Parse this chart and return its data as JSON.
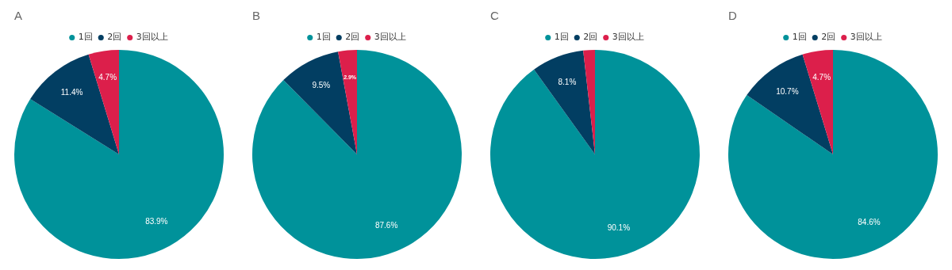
{
  "chart_data": [
    {
      "type": "pie",
      "title": "A",
      "categories": [
        "1回",
        "2回",
        "3回以上"
      ],
      "values": [
        83.9,
        11.4,
        4.7
      ],
      "colors": [
        "#00929a",
        "#023e62",
        "#dc1f4b"
      ],
      "value_labels": [
        "83.9%",
        "11.4%",
        "4.7%"
      ],
      "legend": "top"
    },
    {
      "type": "pie",
      "title": "B",
      "categories": [
        "1回",
        "2回",
        "3回以上"
      ],
      "values": [
        87.6,
        9.5,
        2.9
      ],
      "colors": [
        "#00929a",
        "#023e62",
        "#dc1f4b"
      ],
      "value_labels": [
        "87.6%",
        "9.5%",
        "2.9%"
      ],
      "legend": "top"
    },
    {
      "type": "pie",
      "title": "C",
      "categories": [
        "1回",
        "2回",
        "3回以上"
      ],
      "values": [
        90.1,
        8.1,
        1.8
      ],
      "colors": [
        "#00929a",
        "#023e62",
        "#dc1f4b"
      ],
      "value_labels": [
        "90.1%",
        "8.1%",
        null
      ],
      "legend": "top"
    },
    {
      "type": "pie",
      "title": "D",
      "categories": [
        "1回",
        "2回",
        "3回以上"
      ],
      "values": [
        84.6,
        10.7,
        4.7
      ],
      "colors": [
        "#00929a",
        "#023e62",
        "#dc1f4b"
      ],
      "value_labels": [
        "84.6%",
        "10.7%",
        "4.7%"
      ],
      "legend": "top"
    }
  ]
}
